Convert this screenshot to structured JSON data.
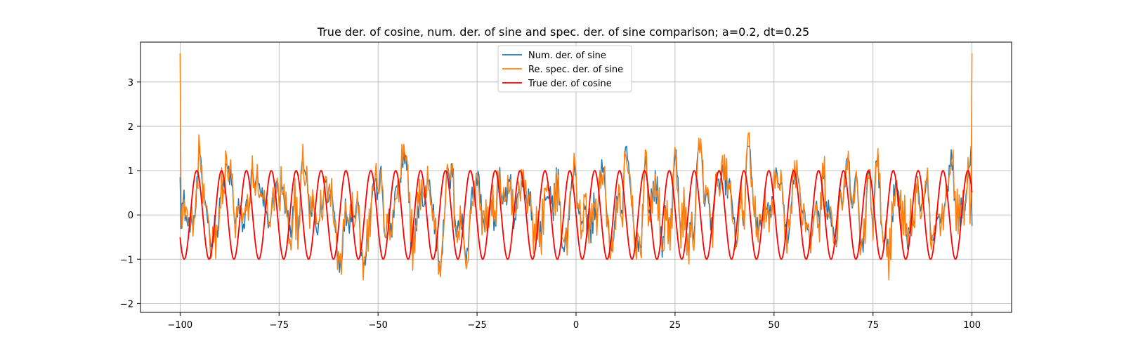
{
  "chart_data": {
    "type": "line",
    "title": "True der. of cosine, num. der. of sine and spec. der. of sine comparison; a=0.2, dt=0.25",
    "xlabel": "",
    "ylabel": "",
    "xlim": [
      -110,
      110
    ],
    "ylim": [
      -2.2,
      3.9
    ],
    "x_ticks": [
      -100,
      -75,
      -50,
      -25,
      0,
      25,
      50,
      75,
      100
    ],
    "x_tick_labels": [
      "−100",
      "−75",
      "−50",
      "−25",
      "0",
      "25",
      "50",
      "75",
      "100"
    ],
    "y_ticks": [
      -2,
      -1,
      0,
      1,
      2,
      3
    ],
    "y_tick_labels": [
      "−2",
      "−1",
      "0",
      "1",
      "2",
      "3"
    ],
    "grid": true,
    "legend_position": "top-center",
    "x_range": [
      -100,
      100
    ],
    "dt": 0.25,
    "series": [
      {
        "name": "Num. der. of sine",
        "color": "#1f77b4",
        "description": "noisy derivative of sine, amplitude about 1.8",
        "start_value": 0.85,
        "end_value": -0.25,
        "min": -1.7,
        "max": 1.55
      },
      {
        "name": "Re. spec. der. of sine",
        "color": "#ff7f0e",
        "description": "noisy spectral derivative, spikes at both ends",
        "start_value": 3.65,
        "end_value": 3.65,
        "min": -1.9,
        "max": 3.65
      },
      {
        "name": "True der. of cosine",
        "color": "#ff0000",
        "formula": "-sin(x)",
        "amplitude": 1,
        "start_value": -0.5,
        "end_value": 0.5
      }
    ]
  }
}
